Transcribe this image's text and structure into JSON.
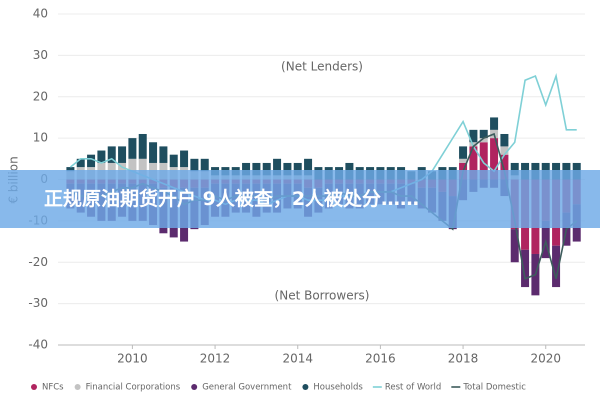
{
  "chart_data": {
    "type": "bar",
    "y_label": "€ billion",
    "annotations": [
      "(Net Lenders)",
      "(Net Borrowers)"
    ],
    "x": [
      2008.5,
      2008.75,
      2009,
      2009.25,
      2009.5,
      2009.75,
      2010,
      2010.25,
      2010.5,
      2010.75,
      2011,
      2011.25,
      2011.5,
      2011.75,
      2012,
      2012.25,
      2012.5,
      2012.75,
      2013,
      2013.25,
      2013.5,
      2013.75,
      2014,
      2014.25,
      2014.5,
      2014.75,
      2015,
      2015.25,
      2015.5,
      2015.75,
      2016,
      2016.25,
      2016.5,
      2016.75,
      2017,
      2017.25,
      2017.5,
      2017.75,
      2018,
      2018.25,
      2018.5,
      2018.75,
      2019,
      2019.25,
      2019.5,
      2019.75,
      2020,
      2020.25,
      2020.5,
      2020.75
    ],
    "xlim": [
      2008.2,
      2020.95
    ],
    "xticks": [
      2010,
      2012,
      2014,
      2016,
      2018,
      2020
    ],
    "ylim": [
      -40,
      40
    ],
    "yticks": [
      40,
      30,
      20,
      10,
      0,
      -10,
      -20,
      -30,
      -40
    ],
    "grid": true,
    "series": [
      {
        "name": "NFCs",
        "type": "bar",
        "color": "#b0245f",
        "values": [
          -1,
          -1,
          -1,
          -1,
          -1,
          -1,
          -1,
          -1,
          -1,
          -2,
          -2,
          -2,
          -2,
          -2,
          -1,
          -1,
          -1,
          -1,
          -1,
          -1,
          -1,
          -1,
          -1,
          -2,
          -2,
          -1,
          -1,
          -1,
          -1,
          -1,
          -1,
          -1,
          -1,
          -1,
          -2,
          -2,
          -3,
          -4,
          4,
          8,
          9,
          10,
          6,
          -12,
          -17,
          -18,
          -10,
          -16,
          -8,
          -6
        ]
      },
      {
        "name": "Financial Corporations",
        "type": "bar",
        "color": "#c3c3c3",
        "values": [
          2,
          3,
          3,
          4,
          4,
          4,
          5,
          5,
          4,
          4,
          3,
          3,
          2,
          2,
          1,
          1,
          1,
          1,
          1,
          1,
          1,
          1,
          1,
          1,
          0,
          0,
          0,
          0,
          0,
          0,
          0,
          0,
          0,
          0,
          0,
          0,
          0,
          0,
          1,
          1,
          1,
          2,
          2,
          1,
          0,
          0,
          0,
          0,
          0,
          0
        ]
      },
      {
        "name": "General Government",
        "type": "bar",
        "color": "#5c2b6e",
        "values": [
          -6,
          -7,
          -8,
          -9,
          -9,
          -8,
          -9,
          -9,
          -10,
          -11,
          -12,
          -13,
          -10,
          -9,
          -8,
          -8,
          -7,
          -7,
          -8,
          -7,
          -7,
          -6,
          -6,
          -7,
          -6,
          -6,
          -5,
          -6,
          -6,
          -5,
          -5,
          -5,
          -6,
          -5,
          -5,
          -6,
          -7,
          -8,
          -5,
          -3,
          -2,
          -2,
          -4,
          -8,
          -9,
          -10,
          -9,
          -10,
          -8,
          -9
        ]
      },
      {
        "name": "Households",
        "type": "bar",
        "color": "#1f4e5f",
        "values": [
          1,
          2,
          3,
          3,
          4,
          4,
          5,
          6,
          5,
          4,
          3,
          4,
          3,
          3,
          2,
          2,
          2,
          3,
          3,
          3,
          4,
          3,
          3,
          4,
          3,
          3,
          3,
          4,
          3,
          3,
          3,
          3,
          3,
          2,
          3,
          2,
          3,
          3,
          3,
          3,
          2,
          3,
          3,
          3,
          4,
          4,
          4,
          4,
          4,
          4
        ]
      },
      {
        "name": "Rest of World",
        "type": "line",
        "color": "#7fd0d6",
        "values": [
          3,
          5,
          5,
          4,
          5,
          3,
          2,
          1,
          0,
          -1,
          -2,
          -3,
          -4,
          -5,
          -5,
          -6,
          -5,
          -5,
          -5,
          -6,
          -5,
          -4,
          -4,
          -5,
          -5,
          -5,
          -4,
          -4,
          -4,
          -3,
          -3,
          -3,
          -2,
          -1,
          0,
          2,
          6,
          10,
          14,
          8,
          4,
          2,
          6,
          9,
          24,
          25,
          18,
          25,
          12,
          12
        ]
      },
      {
        "name": "Total Domestic",
        "type": "line",
        "color": "#3d5c5c",
        "values": [
          -3,
          -4,
          -4,
          -4,
          -3,
          -2,
          -2,
          -1,
          -2,
          -3,
          -4,
          -6,
          -5,
          -5,
          -4,
          -5,
          -4,
          -4,
          -4,
          -5,
          -4,
          -4,
          -4,
          -4,
          -4,
          -4,
          -3,
          -4,
          -4,
          -3,
          -3,
          -3,
          -4,
          -4,
          -6,
          -8,
          -10,
          -12,
          2,
          8,
          10,
          11,
          2,
          -10,
          -24,
          -23,
          -15,
          -24,
          -12,
          -10
        ]
      }
    ]
  },
  "overlay": {
    "text": "正规原油期货开户 9人被查，2人被处分……"
  }
}
